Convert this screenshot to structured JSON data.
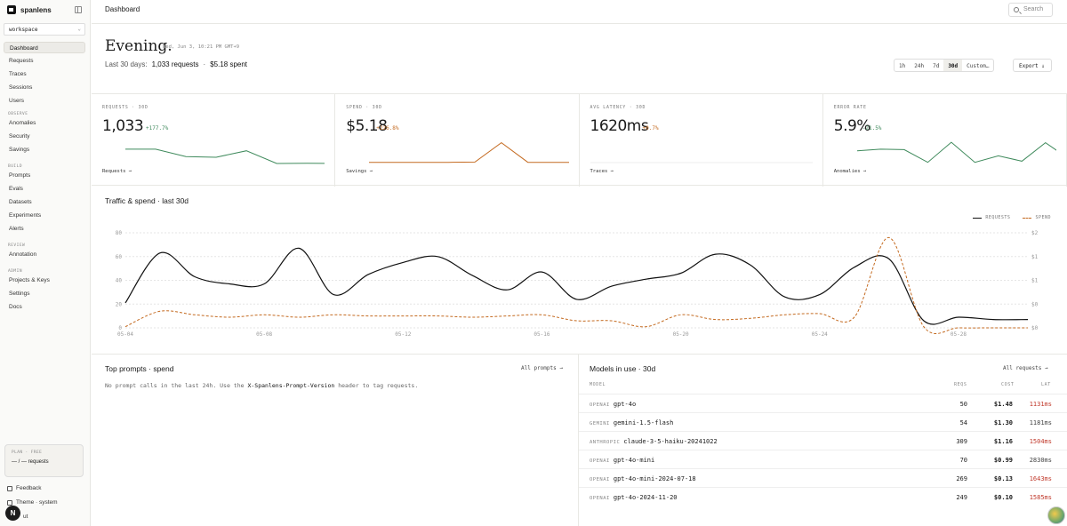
{
  "sidebar": {
    "brand": "spanlens",
    "workspace": "workspace",
    "nav": [
      {
        "label": "Dashboard",
        "active": true
      },
      {
        "label": "Requests"
      },
      {
        "label": "Traces"
      },
      {
        "label": "Sessions"
      },
      {
        "label": "Users"
      }
    ],
    "sections": [
      {
        "title": "OBSERVE",
        "items": [
          "Anomalies",
          "Security",
          "Savings"
        ]
      },
      {
        "title": "BUILD",
        "items": [
          "Prompts",
          "Evals",
          "Datasets",
          "Experiments",
          "Alerts"
        ]
      },
      {
        "title": "REVIEW",
        "items": [
          "Annotation"
        ]
      },
      {
        "title": "ADMIN",
        "items": [
          "Projects & Keys",
          "Settings",
          "Docs"
        ]
      }
    ],
    "plan": {
      "label": "PLAN · FREE",
      "usage": "— / — requests"
    },
    "footer": {
      "feedback": "Feedback",
      "theme": "Theme · system",
      "logout": "ut"
    }
  },
  "header": {
    "title": "Dashboard",
    "search_placeholder": "Search"
  },
  "greeting": {
    "title": "Evening.",
    "date": "Wed, Jun 3, 10:21 PM",
    "tz": "GMT+9"
  },
  "summary": {
    "prefix": "Last 30 days:",
    "requests": "1,033 requests",
    "sep": "·",
    "spent": "$5.18 spent"
  },
  "ranges": [
    "1h",
    "24h",
    "7d",
    "30d",
    "Custom…"
  ],
  "active_range": "30d",
  "export_label": "Export ↓",
  "kpis": [
    {
      "label": "REQUESTS · 30D",
      "value": "1,033",
      "delta": "+177.7%",
      "link": "Requests →",
      "color": "#3f8a5c",
      "spark": [
        0.62,
        0.62,
        0.3,
        0.27,
        0.55,
        0.0,
        0.01,
        0.0
      ]
    },
    {
      "label": "SPEND · 30D",
      "value": "$5.18",
      "delta": "+226.8%",
      "link": "Savings →",
      "color": "#c46a20",
      "spark": [
        0.05,
        0.05,
        0.05,
        0.05,
        0.06,
        0.9,
        0.05,
        0.05,
        0.05
      ]
    },
    {
      "label": "AVG LATENCY · 30D",
      "value": "1620ms",
      "delta": "+0.7%",
      "link": "Traces →",
      "color": "#888888",
      "spark": []
    },
    {
      "label": "ERROR RATE",
      "value": "5.9%",
      "delta": "-21.5%",
      "link": "Anomalies →",
      "color": "#3f8a5c",
      "spark": [
        0.55,
        0.62,
        0.6,
        0.05,
        0.92,
        0.05,
        0.33,
        0.1,
        0.9,
        0.2
      ]
    }
  ],
  "traffic": {
    "title": "Traffic & spend · last 30d",
    "legend": [
      "REQUESTS",
      "SPEND"
    ]
  },
  "chart_data": {
    "type": "line",
    "x": [
      "05-04",
      "05-05",
      "05-06",
      "05-07",
      "05-08",
      "05-09",
      "05-10",
      "05-11",
      "05-12",
      "05-13",
      "05-14",
      "05-15",
      "05-16",
      "05-17",
      "05-18",
      "05-19",
      "05-20",
      "05-21",
      "05-22",
      "05-23",
      "05-24",
      "05-25",
      "05-26",
      "05-27",
      "05-28",
      "05-29",
      "05-30"
    ],
    "xticks": [
      "05-04",
      "05-08",
      "05-12",
      "05-16",
      "05-20",
      "05-24",
      "05-28"
    ],
    "series": [
      {
        "name": "REQUESTS",
        "axis": "left",
        "style": "solid",
        "values": [
          21,
          63,
          43,
          37,
          37,
          67,
          28,
          45,
          55,
          60,
          44,
          32,
          47,
          24,
          35,
          41,
          46,
          62,
          53,
          26,
          28,
          51,
          58,
          6,
          9,
          7,
          7
        ]
      },
      {
        "name": "SPEND",
        "axis": "right",
        "style": "dashed",
        "values": [
          0.05,
          0.7,
          0.55,
          0.45,
          0.55,
          0.45,
          0.55,
          0.5,
          0.5,
          0.5,
          0.45,
          0.5,
          0.55,
          0.3,
          0.3,
          0.05,
          0.55,
          0.35,
          0.4,
          0.55,
          0.6,
          0.45,
          3.8,
          0.05,
          0.0,
          0.0,
          0.0
        ]
      }
    ],
    "y_left": {
      "ticks": [
        0,
        20,
        40,
        60,
        80
      ],
      "ylim": [
        0,
        80
      ]
    },
    "y_right": {
      "ticks": [
        "$0",
        "$0",
        "$1",
        "$1",
        "$2"
      ],
      "ylim": [
        0,
        4
      ]
    },
    "grid": true,
    "legend": "top-right"
  },
  "prompts_panel": {
    "title": "Top prompts · spend",
    "link": "All prompts →",
    "empty_pre": "No prompt calls in the last 24h. Use the",
    "empty_code": "X-Spanlens-Prompt-Version",
    "empty_post": "header to tag requests."
  },
  "models_panel": {
    "title": "Models in use · 30d",
    "link": "All requests →",
    "columns": [
      "MODEL",
      "REQS",
      "COST",
      "LAT"
    ],
    "rows": [
      {
        "provider": "OPENAI",
        "model": "gpt-4o",
        "reqs": "50",
        "cost": "$1.48",
        "lat": "1131ms",
        "lat_warn": true
      },
      {
        "provider": "GEMINI",
        "model": "gemini-1.5-flash",
        "reqs": "54",
        "cost": "$1.30",
        "lat": "1181ms",
        "lat_warn": false
      },
      {
        "provider": "ANTHROPIC",
        "model": "claude-3-5-haiku-20241022",
        "reqs": "309",
        "cost": "$1.16",
        "lat": "1504ms",
        "lat_warn": true
      },
      {
        "provider": "OPENAI",
        "model": "gpt-4o-mini",
        "reqs": "70",
        "cost": "$0.99",
        "lat": "2830ms",
        "lat_warn": false
      },
      {
        "provider": "OPENAI",
        "model": "gpt-4o-mini-2024-07-18",
        "reqs": "269",
        "cost": "$0.13",
        "lat": "1643ms",
        "lat_warn": true
      },
      {
        "provider": "OPENAI",
        "model": "gpt-4o-2024-11-20",
        "reqs": "249",
        "cost": "$0.10",
        "lat": "1585ms",
        "lat_warn": true
      }
    ]
  },
  "colors": {
    "warn": "#c0392b",
    "spend": "#c46a20",
    "requests": "#111111"
  }
}
